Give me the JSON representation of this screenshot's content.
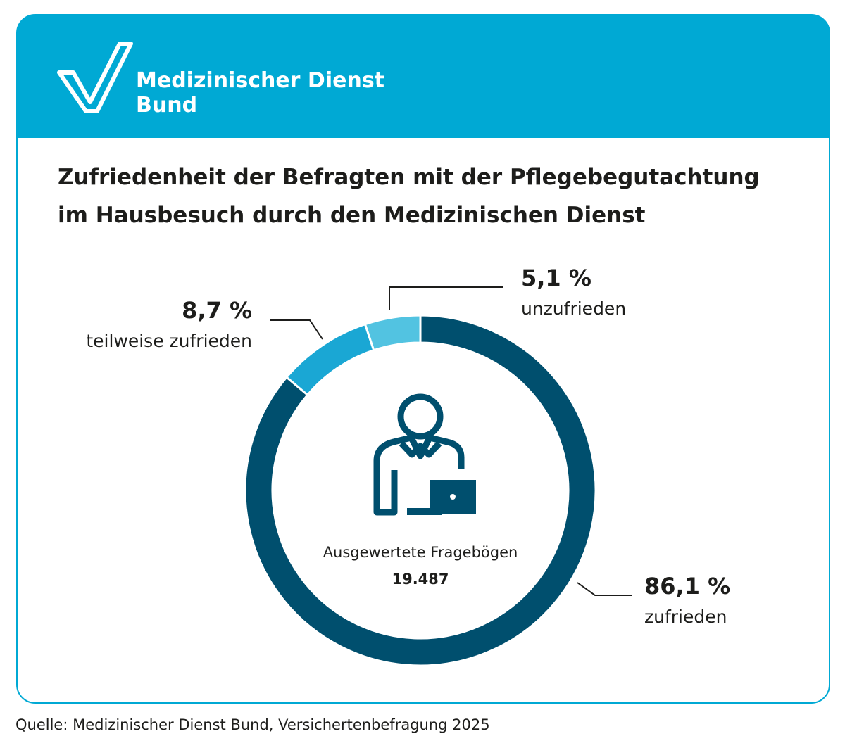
{
  "header": {
    "brand": [
      "Medizinischer Dienst",
      "Bund"
    ]
  },
  "chart_data": {
    "type": "pie",
    "title": [
      "Zufriedenheit der Befragten mit der Pflegebegutachtung",
      "im Hausbesuch durch den Medizinischen Dienst"
    ],
    "categories": [
      "zufrieden",
      "teilweise zufrieden",
      "unzufrieden"
    ],
    "values": [
      86.1,
      8.7,
      5.1
    ],
    "value_labels": [
      "86,1 %",
      "8,7 %",
      "5,1 %"
    ],
    "colors": [
      "#004f6e",
      "#1aa7d4",
      "#52c3e1"
    ],
    "center_label": "Ausgewertete Fragebögen",
    "center_value": "19.487"
  },
  "source": "Quelle: Medizinischer Dienst Bund, Versichertenbefragung 2025"
}
